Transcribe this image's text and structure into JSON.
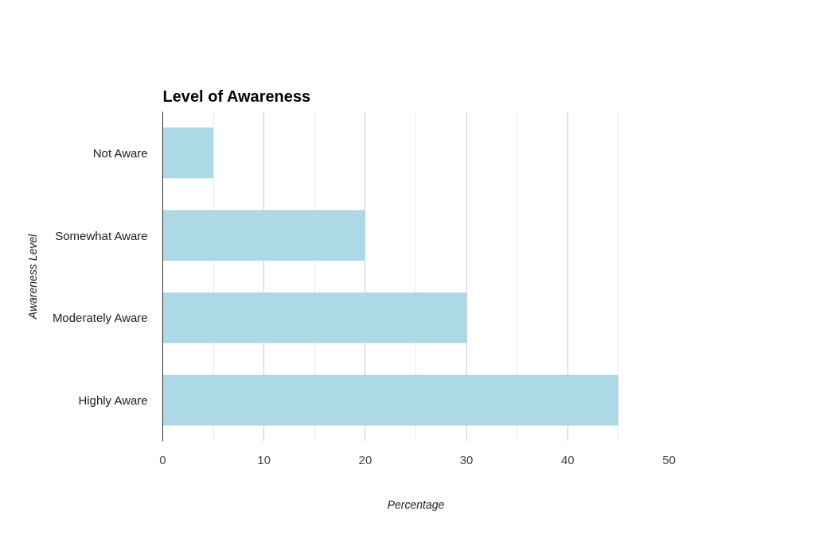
{
  "chart_data": {
    "type": "bar",
    "orientation": "horizontal",
    "title": "Level of Awareness",
    "xlabel": "Percentage",
    "ylabel": "Awareness Level",
    "categories": [
      "Not Aware",
      "Somewhat Aware",
      "Moderately Aware",
      "Highly Aware"
    ],
    "values": [
      5,
      20,
      30,
      45
    ],
    "color": "#add8e6",
    "xlim": [
      0,
      50
    ],
    "xticks": [
      0,
      {
        "value": 5,
        "label": null
      },
      10,
      {
        "value": 15,
        "label": null
      },
      20,
      {
        "value": 25,
        "label": null
      },
      30,
      {
        "value": 35,
        "label": null
      },
      40,
      {
        "value": 45,
        "label": null
      },
      50
    ],
    "grid": "x"
  }
}
